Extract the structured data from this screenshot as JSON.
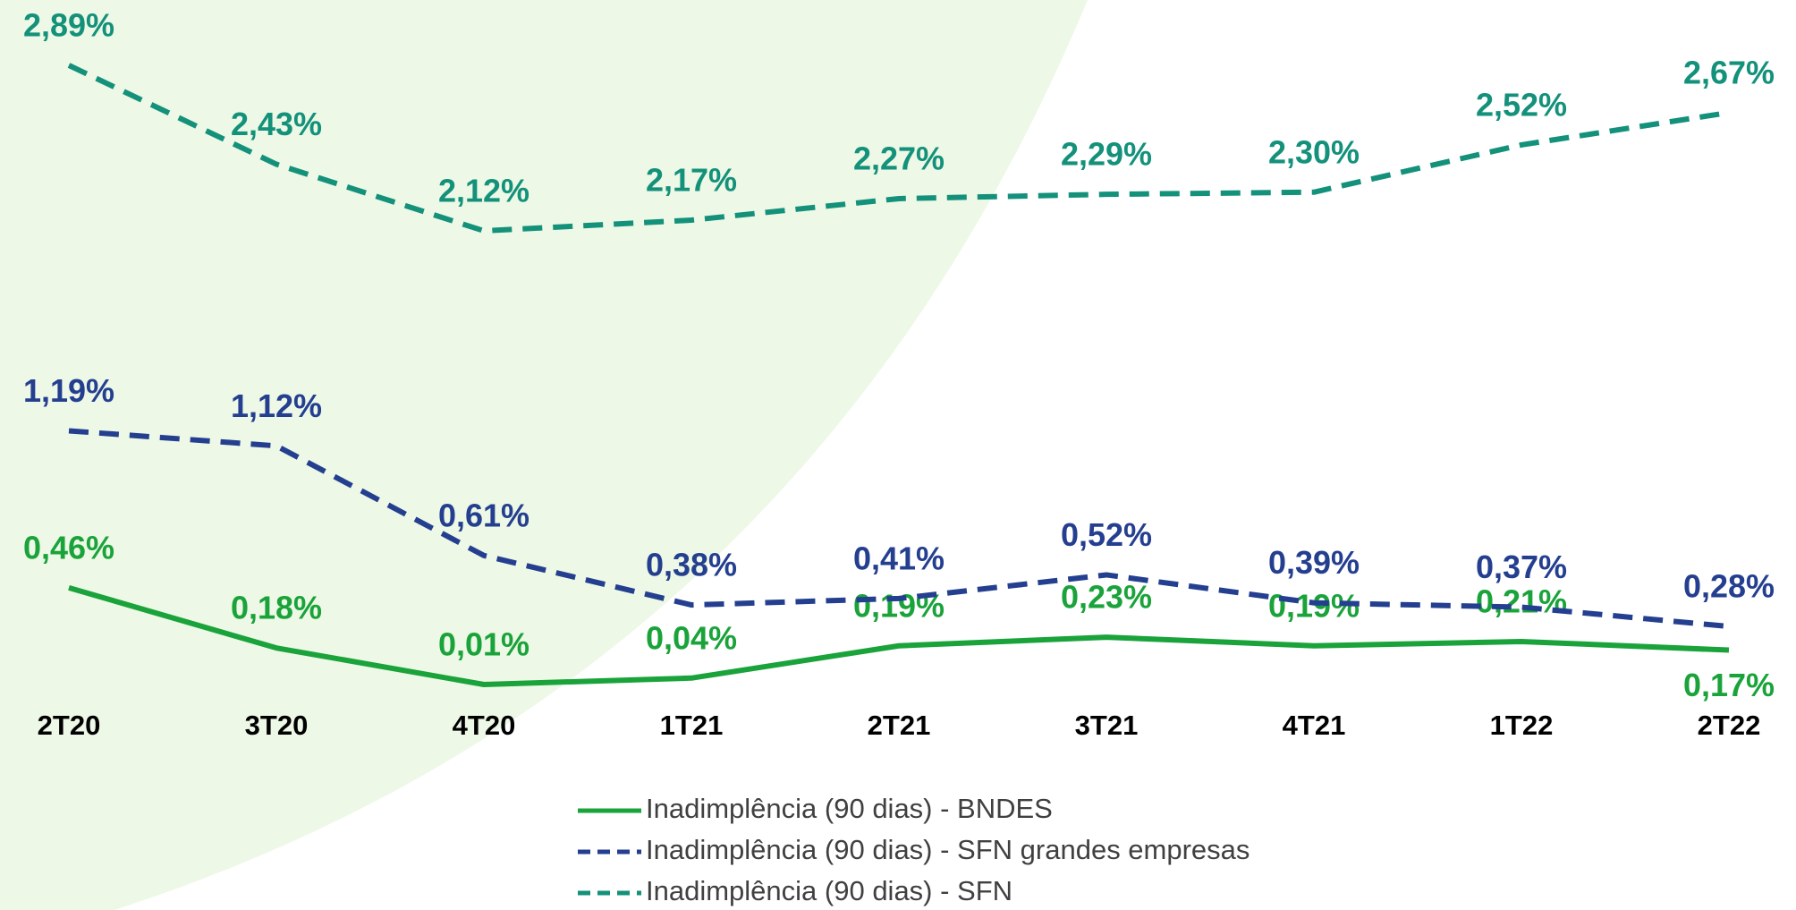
{
  "chart_data": {
    "type": "line",
    "categories": [
      "2T20",
      "3T20",
      "4T20",
      "1T21",
      "2T21",
      "3T21",
      "4T21",
      "1T22",
      "2T22"
    ],
    "series": [
      {
        "name": "Inadimplência (90 dias) - BNDES",
        "color": "#1aa33a",
        "dashed": false,
        "values": [
          0.46,
          0.18,
          0.01,
          0.04,
          0.19,
          0.23,
          0.19,
          0.21,
          0.17
        ],
        "value_labels": [
          "0,46%",
          "0,18%",
          "0,01%",
          "0,04%",
          "0,19%",
          "0,23%",
          "0,19%",
          "0,21%",
          "0,17%"
        ]
      },
      {
        "name": "Inadimplência (90 dias) - SFN grandes empresas",
        "color": "#243f8f",
        "dashed": true,
        "values": [
          1.19,
          1.12,
          0.61,
          0.38,
          0.41,
          0.52,
          0.39,
          0.37,
          0.28
        ],
        "value_labels": [
          "1,19%",
          "1,12%",
          "0,61%",
          "0,38%",
          "0,41%",
          "0,52%",
          "0,39%",
          "0,37%",
          "0,28%"
        ]
      },
      {
        "name": "Inadimplência (90 dias) - SFN",
        "color": "#13917a",
        "dashed": true,
        "values": [
          2.89,
          2.43,
          2.12,
          2.17,
          2.27,
          2.29,
          2.3,
          2.52,
          2.67
        ],
        "value_labels": [
          "2,89%",
          "2,43%",
          "2,12%",
          "2,17%",
          "2,27%",
          "2,29%",
          "2,30%",
          "2,52%",
          "2,67%"
        ]
      }
    ],
    "legend": "bottom",
    "grid": false
  }
}
